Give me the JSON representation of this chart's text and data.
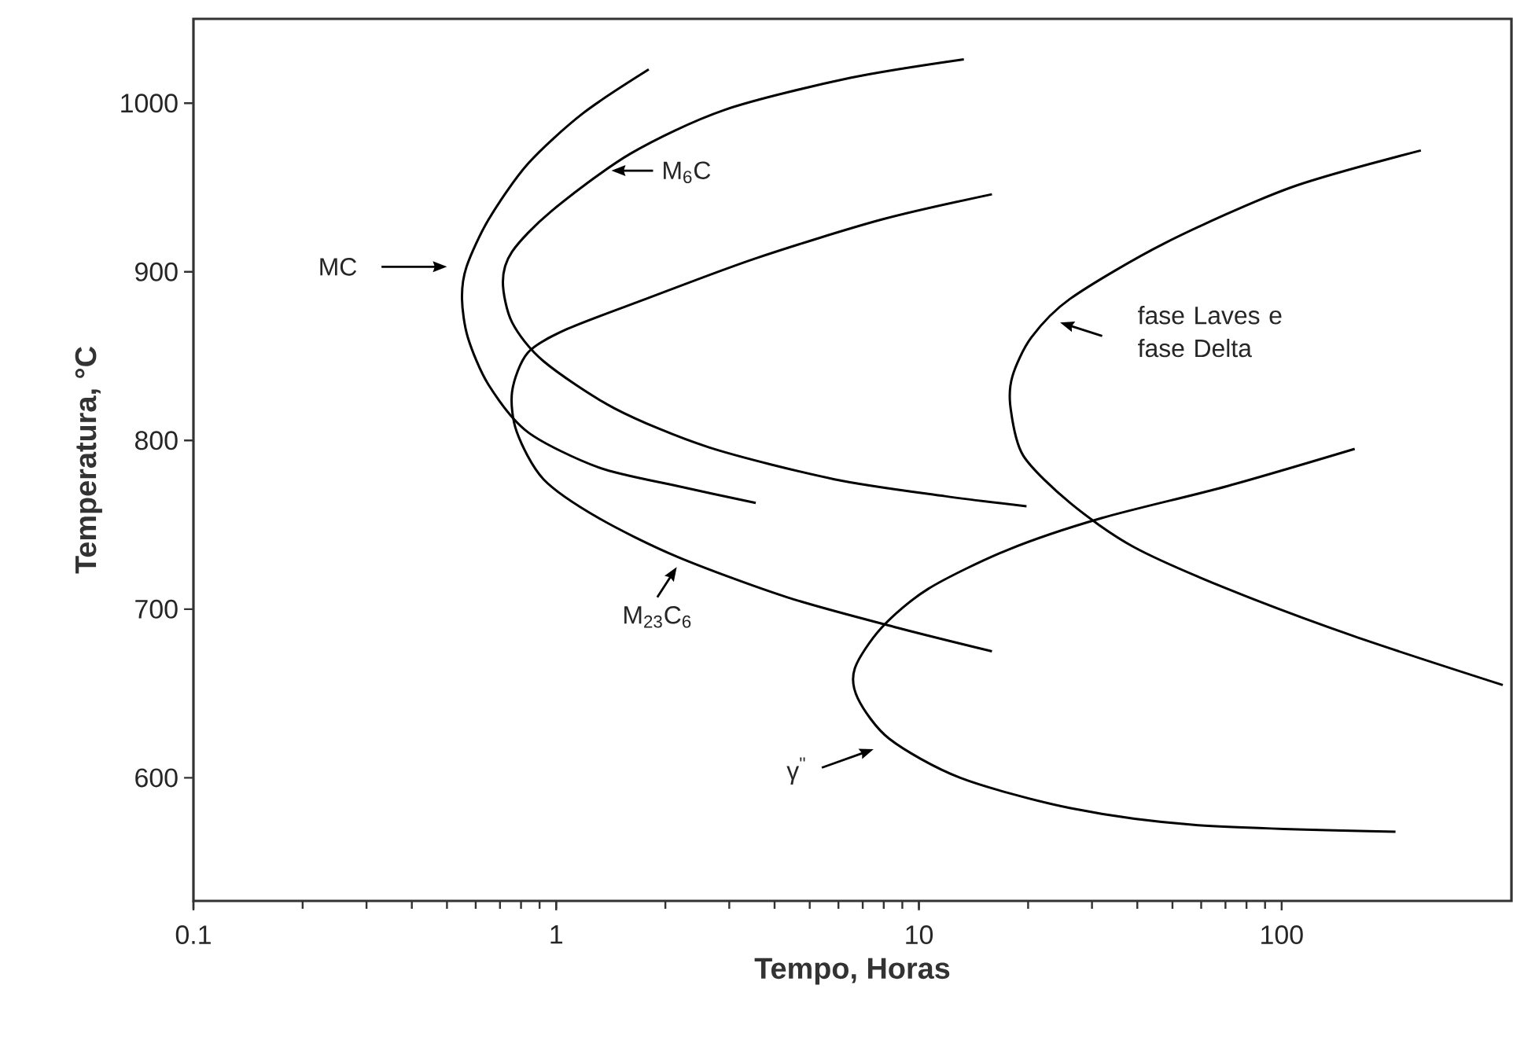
{
  "chart_data": {
    "type": "line",
    "xlabel": "Tempo, Horas",
    "ylabel": "Temperatura, °C",
    "log": "x",
    "xlim": [
      0.1,
      430
    ],
    "ylim": [
      527,
      1050
    ],
    "xticks": [
      0.1,
      1,
      10,
      100
    ],
    "yticks": [
      600,
      700,
      800,
      900,
      1000
    ],
    "marker": "none",
    "line_style": "solid",
    "series": [
      {
        "color": "#000000",
        "x": [
          1.8,
          1.185,
          0.835,
          0.651,
          0.566,
          0.55,
          0.571,
          0.651,
          0.835,
          1.31,
          2.16,
          3.55
        ],
        "values": [
          1020,
          994,
          964,
          931,
          903,
          884,
          861,
          833,
          805,
          784,
          773,
          763
        ]
      },
      {
        "color": "#000000",
        "x": [
          13.3,
          6.47,
          2.91,
          1.6,
          0.97,
          0.756,
          0.713,
          0.756,
          0.923,
          1.45,
          2.63,
          5.85,
          11.8,
          19.8
        ],
        "values": [
          1026,
          1015,
          996,
          970,
          936,
          912,
          894,
          870,
          847,
          819,
          796,
          777,
          767,
          761
        ]
      },
      {
        "color": "#000000",
        "x": [
          15.9,
          7.89,
          3.55,
          1.77,
          1.07,
          0.835,
          0.756,
          0.779,
          0.923,
          1.31,
          2.16,
          4.34,
          8.72,
          15.9
        ],
        "values": [
          946,
          931,
          908,
          884,
          866,
          852,
          829,
          805,
          777,
          754,
          731,
          707,
          689,
          675
        ]
      },
      {
        "color": "#000000",
        "x": [
          242,
          106,
          47.6,
          26.1,
          20.4,
          18.1,
          17.9,
          19.4,
          26.1,
          39.0,
          71.0,
          158,
          407
        ],
        "values": [
          972,
          950,
          917,
          884,
          861,
          838,
          819,
          791,
          763,
          737,
          712,
          684,
          655
        ]
      },
      {
        "color": "#000000",
        "x": [
          159,
          71.0,
          31.9,
          17.5,
          10.6,
          7.89,
          6.66,
          6.79,
          8.3,
          13.0,
          26.2,
          58.1,
          206
        ],
        "values": [
          795,
          773,
          754,
          735,
          712,
          689,
          665,
          647,
          623,
          600,
          582,
          572,
          568
        ]
      }
    ],
    "annotations": [
      "MC",
      "M$_{6}$C",
      "M$_{23}$C$_{6}$",
      "fase Laves e fase Delta",
      "γ$^{''}$"
    ]
  }
}
